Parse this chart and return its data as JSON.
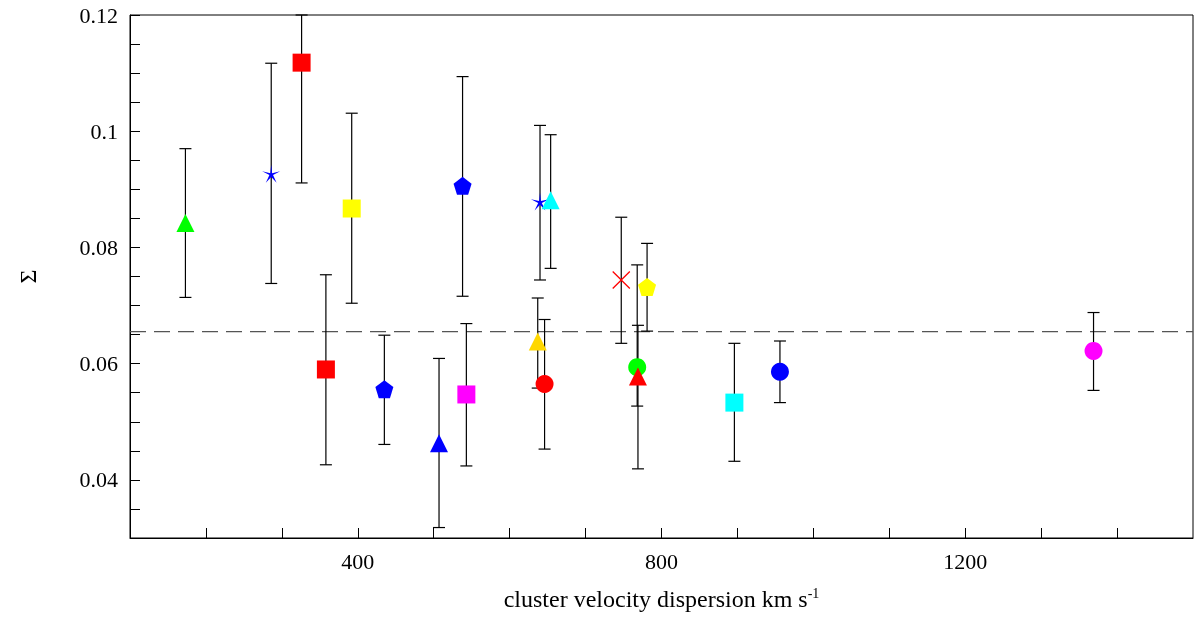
{
  "chart_data": {
    "type": "scatter",
    "xlabel": "cluster velocity dispersion km s$^{-1}$",
    "ylabel": "Σ",
    "xlim": [
      100,
      1500
    ],
    "ylim": [
      0.03,
      0.12
    ],
    "xticks": [
      {
        "value": 200,
        "label": null
      },
      {
        "value": 300,
        "label": null
      },
      400,
      {
        "value": 500,
        "label": null
      },
      {
        "value": 600,
        "label": null
      },
      {
        "value": 700,
        "label": null
      },
      800,
      {
        "value": 900,
        "label": null
      },
      {
        "value": 1000,
        "label": null
      },
      {
        "value": 1100,
        "label": null
      },
      1200,
      {
        "value": 1300,
        "label": null
      },
      {
        "value": 1400,
        "label": null
      }
    ],
    "yticks": [
      {
        "value": 0.035,
        "label": null
      },
      0.04,
      {
        "value": 0.045,
        "label": null
      },
      {
        "value": 0.05,
        "label": null
      },
      {
        "value": 0.055,
        "label": null
      },
      0.06,
      {
        "value": 0.065,
        "label": null
      },
      {
        "value": 0.07,
        "label": null
      },
      {
        "value": 0.075,
        "label": null
      },
      0.08,
      {
        "value": 0.085,
        "label": null
      },
      {
        "value": 0.09,
        "label": null
      },
      {
        "value": 0.095,
        "label": null
      },
      0.1,
      {
        "value": 0.105,
        "label": null
      },
      {
        "value": 0.11,
        "label": null
      },
      {
        "value": 0.115,
        "label": null
      },
      0.12
    ],
    "ref_lines": [
      {
        "axis": "y",
        "value": 0.0655,
        "color": "#555555",
        "line_style": "dashed"
      }
    ],
    "series": [
      {
        "x": [
          173
        ],
        "values": [
          0.0842
        ],
        "errors": [
          [
            0.0714,
            0.097
          ]
        ],
        "color": "#00ff00",
        "marker": "triangle"
      },
      {
        "x": [
          286
        ],
        "values": [
          0.0927
        ],
        "errors": [
          [
            0.0738,
            0.1117
          ]
        ],
        "color": "#0000ff",
        "marker": "star"
      },
      {
        "x": [
          326
        ],
        "values": [
          0.1118
        ],
        "errors": [
          [
            0.0911,
            0.12
          ]
        ],
        "color": "#ff0000",
        "marker": "square"
      },
      {
        "x": [
          392
        ],
        "values": [
          0.0867
        ],
        "errors": [
          [
            0.0704,
            0.1031
          ]
        ],
        "color": "#ffff00",
        "marker": "square"
      },
      {
        "x": [
          358
        ],
        "values": [
          0.059
        ],
        "errors": [
          [
            0.0426,
            0.0753
          ]
        ],
        "color": "#ff0000",
        "marker": "square"
      },
      {
        "x": [
          435
        ],
        "values": [
          0.0556
        ],
        "errors": [
          [
            0.0461,
            0.0649
          ]
        ],
        "color": "#0000ff"
      },
      {
        "x": [
          507
        ],
        "values": [
          0.0463
        ],
        "errors": [
          [
            0.0318,
            0.0609
          ]
        ],
        "color": "#0000ff",
        "marker": "triangle"
      },
      {
        "x": [
          538
        ],
        "values": [
          0.0906
        ],
        "errors": [
          [
            0.0716,
            0.1094
          ]
        ],
        "color": "#0000ff"
      },
      {
        "x": [
          543
        ],
        "values": [
          0.0547
        ],
        "errors": [
          [
            0.0424,
            0.0669
          ]
        ],
        "color": "#ff00ff",
        "marker": "square"
      },
      {
        "x": [
          640
        ],
        "values": [
          0.0879
        ],
        "errors": [
          [
            0.0744,
            0.101
          ]
        ],
        "color": "#0000ff",
        "marker": "star"
      },
      {
        "x": [
          654
        ],
        "values": [
          0.0881
        ],
        "errors": [
          [
            0.0764,
            0.0994
          ]
        ],
        "color": "#00ffff",
        "marker": "triangle"
      },
      {
        "x": [
          637
        ],
        "values": [
          0.0638
        ],
        "errors": [
          [
            0.0558,
            0.0713
          ]
        ],
        "color": "#ffd700",
        "marker": "triangle"
      },
      {
        "x": [
          646
        ],
        "values": [
          0.0565
        ],
        "errors": [
          [
            0.0453,
            0.0676
          ]
        ],
        "color": "#ff0000",
        "marker": "circle"
      },
      {
        "x": [
          747
        ],
        "values": [
          0.0744
        ],
        "errors": [
          [
            0.0635,
            0.0852
          ]
        ],
        "color": "#ff0000",
        "marker": "cross"
      },
      {
        "x": [
          781
        ],
        "values": [
          0.0732
        ],
        "errors": [
          [
            0.0656,
            0.0807
          ]
        ],
        "color": "#ffff00"
      },
      {
        "x": [
          768
        ],
        "values": [
          0.0594
        ],
        "errors": [
          [
            0.0527,
            0.077
          ]
        ],
        "color": "#00ff00",
        "marker": "circle"
      },
      {
        "x": [
          769
        ],
        "values": [
          0.0578
        ],
        "errors": [
          [
            0.0419,
            0.0666
          ]
        ],
        "color": "#ff0000",
        "marker": "triangle"
      },
      {
        "x": [
          896
        ],
        "values": [
          0.0533
        ],
        "errors": [
          [
            0.0432,
            0.0635
          ]
        ],
        "color": "#00ffff",
        "marker": "square"
      },
      {
        "x": [
          956
        ],
        "values": [
          0.0586
        ],
        "errors": [
          [
            0.0533,
            0.0639
          ]
        ],
        "color": "#0000ff",
        "marker": "circle"
      },
      {
        "x": [
          1369
        ],
        "values": [
          0.0622
        ],
        "errors": [
          [
            0.0554,
            0.0688
          ]
        ],
        "color": "#ff00ff",
        "marker": "circle"
      }
    ]
  }
}
